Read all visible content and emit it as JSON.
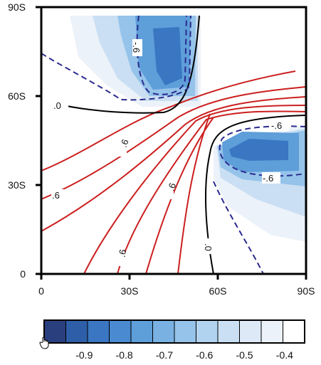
{
  "chart_data": {
    "type": "contour",
    "x_ticks": [
      "0",
      "30S",
      "60S",
      "90S"
    ],
    "x_tick_values": [
      0,
      30,
      60,
      90
    ],
    "y_ticks": [
      "0",
      "30S",
      "60S",
      "90S"
    ],
    "y_tick_values": [
      0,
      30,
      60,
      90
    ],
    "xlim": [
      0,
      90
    ],
    "ylim": [
      0,
      90
    ],
    "contour_labels": [
      ".0",
      ".6",
      ".6",
      ".6",
      ".6",
      "-.6",
      "-.6",
      ".0",
      ".6"
    ],
    "colorbar": {
      "ticks": [
        "-0.9",
        "-0.8",
        "-0.7",
        "-0.6",
        "-0.5",
        "-0.4"
      ],
      "tick_values": [
        -0.9,
        -0.8,
        -0.7,
        -0.6,
        -0.5,
        -0.4
      ],
      "min": -1.0,
      "max": -0.35,
      "colors": [
        "#2a3f7e",
        "#2f5ea8",
        "#3a76c2",
        "#4a8ad0",
        "#5e9ed9",
        "#78b1e2",
        "#95c3ea",
        "#b2d3ef",
        "#cadff3",
        "#dde9f6",
        "#ecf2f9",
        "#ffffff"
      ]
    },
    "line_colors": {
      "positive": "#cc1f1f",
      "zero": "#000000",
      "negative": "#2b2b8f"
    }
  }
}
